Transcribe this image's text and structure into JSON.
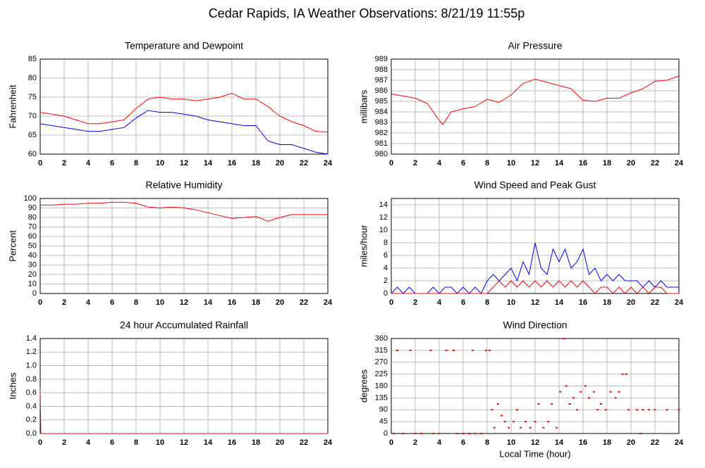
{
  "title": "Cedar Rapids, IA Weather Observations: 8/21/19 11:55p",
  "chart_data": [
    {
      "type": "line",
      "title": "Temperature and Dewpoint",
      "ylabel": "Fahrenheit",
      "x": [
        0,
        1,
        2,
        3,
        4,
        5,
        6,
        7,
        8,
        9,
        10,
        11,
        12,
        13,
        14,
        15,
        16,
        17,
        18,
        19,
        20,
        21,
        22,
        23,
        24
      ],
      "series": [
        {
          "color": "#ff0000",
          "values": [
            71,
            70.5,
            70,
            69,
            68,
            68,
            68.5,
            69,
            72,
            74.5,
            75,
            74.5,
            74.5,
            74,
            74.5,
            75,
            76,
            74.5,
            74.5,
            72.5,
            70,
            68.5,
            67.5,
            66,
            65.8
          ]
        },
        {
          "color": "#0000ff",
          "values": [
            68,
            67.5,
            67,
            66.5,
            66,
            66,
            66.5,
            67,
            69.5,
            71.5,
            71,
            71,
            70.5,
            70,
            69,
            68.5,
            68,
            67.5,
            67.5,
            63.5,
            62.5,
            62.5,
            61.5,
            60.5,
            60
          ]
        }
      ],
      "xlim": [
        0,
        24
      ],
      "xticks": [
        0,
        2,
        4,
        6,
        8,
        10,
        12,
        14,
        16,
        18,
        20,
        22,
        24
      ],
      "ylim": [
        60,
        85
      ],
      "yticks": [
        60,
        65,
        70,
        75,
        80,
        85
      ],
      "grid": true
    },
    {
      "type": "line",
      "title": "Air Pressure",
      "ylabel": "millibars",
      "x": [
        0,
        1,
        2,
        3,
        4,
        4.3,
        5,
        6,
        7,
        8,
        9,
        10,
        11,
        12,
        13,
        14,
        15,
        16,
        17,
        18,
        19,
        20,
        21,
        22,
        23,
        24
      ],
      "series": [
        {
          "color": "#ff0000",
          "values": [
            985.7,
            985.5,
            985.3,
            984.8,
            983.2,
            982.8,
            984,
            984.3,
            984.5,
            985.2,
            984.9,
            985.6,
            986.7,
            987.1,
            986.8,
            986.5,
            986.2,
            985.1,
            985,
            985.3,
            985.3,
            985.8,
            986.2,
            986.9,
            987,
            987.4
          ]
        }
      ],
      "xlim": [
        0,
        24
      ],
      "xticks": [
        0,
        2,
        4,
        6,
        8,
        10,
        12,
        14,
        16,
        18,
        20,
        22,
        24
      ],
      "ylim": [
        980,
        989
      ],
      "yticks": [
        980,
        981,
        982,
        983,
        984,
        985,
        986,
        987,
        988,
        989
      ],
      "grid": true
    },
    {
      "type": "line",
      "title": "Relative Humidity",
      "ylabel": "Percent",
      "x": [
        0,
        1,
        2,
        3,
        4,
        5,
        6,
        7,
        8,
        9,
        10,
        11,
        12,
        13,
        14,
        15,
        16,
        17,
        18,
        19,
        20,
        21,
        22,
        23,
        24
      ],
      "series": [
        {
          "color": "#ff0000",
          "values": [
            93,
            93,
            94,
            94,
            95,
            95,
            96,
            96,
            95,
            91,
            90,
            91,
            90,
            88,
            85,
            82,
            79,
            80,
            81,
            76,
            80,
            83,
            83,
            83,
            83
          ]
        }
      ],
      "xlim": [
        0,
        24
      ],
      "xticks": [
        0,
        2,
        4,
        6,
        8,
        10,
        12,
        14,
        16,
        18,
        20,
        22,
        24
      ],
      "ylim": [
        0,
        100
      ],
      "yticks": [
        0,
        10,
        20,
        30,
        40,
        50,
        60,
        70,
        80,
        90,
        100
      ],
      "grid": true
    },
    {
      "type": "line",
      "title": "Wind Speed and Peak Gust",
      "ylabel": "miles/hour",
      "x": [
        0,
        0.5,
        1,
        1.5,
        2,
        2.5,
        3,
        3.5,
        4,
        4.5,
        5,
        5.5,
        6,
        6.5,
        7,
        7.5,
        8,
        8.5,
        9,
        9.5,
        10,
        10.5,
        11,
        11.5,
        12,
        12.5,
        13,
        13.5,
        14,
        14.5,
        15,
        15.5,
        16,
        16.5,
        17,
        17.5,
        18,
        18.5,
        19,
        19.5,
        20,
        20.5,
        21,
        21.5,
        22,
        22.5,
        23,
        23.5,
        24
      ],
      "series": [
        {
          "color": "#0000ff",
          "values": [
            0,
            1,
            0,
            1,
            0,
            0,
            0,
            1,
            0,
            1,
            1,
            0,
            1,
            0,
            1,
            0,
            2,
            3,
            2,
            3,
            4,
            2,
            5,
            3,
            8,
            4,
            3,
            7,
            5,
            7,
            4,
            5,
            7,
            3,
            4,
            2,
            3,
            2,
            3,
            2,
            2,
            2,
            1,
            2,
            1,
            2,
            1,
            1,
            1
          ]
        },
        {
          "color": "#ff0000",
          "values": [
            0,
            0,
            0,
            0,
            0,
            0,
            0,
            0,
            0,
            0,
            0,
            0,
            0,
            0,
            0,
            0,
            0,
            1,
            2,
            1,
            2,
            1,
            2,
            1,
            2,
            1,
            2,
            1,
            2,
            1,
            2,
            1,
            2,
            1,
            0,
            1,
            1,
            0,
            1,
            0,
            1,
            0,
            1,
            0,
            1,
            1,
            0,
            0,
            0
          ]
        }
      ],
      "xlim": [
        0,
        24
      ],
      "xticks": [
        0,
        2,
        4,
        6,
        8,
        10,
        12,
        14,
        16,
        18,
        20,
        22,
        24
      ],
      "ylim": [
        0,
        15
      ],
      "yticks": [
        0,
        2,
        4,
        6,
        8,
        10,
        12,
        14
      ],
      "grid": true
    },
    {
      "type": "line",
      "title": "24 hour Accumulated Rainfall",
      "ylabel": "Inches",
      "x": [
        0,
        0.05,
        24
      ],
      "series": [
        {
          "color": "#ff0000",
          "values": [
            0.65,
            0,
            0
          ]
        }
      ],
      "xlim": [
        0,
        24
      ],
      "xticks": [
        0,
        2,
        4,
        6,
        8,
        10,
        12,
        14,
        16,
        18,
        20,
        22,
        24
      ],
      "ylim": [
        0,
        1.4
      ],
      "yticks": [
        {
          "value": 0,
          "label": "0.0"
        },
        0.2,
        0.4,
        0.6,
        0.8,
        {
          "value": 1,
          "label": "1.0"
        },
        1.2,
        1.4
      ],
      "grid": true
    },
    {
      "type": "scatter",
      "title": "Wind Direction",
      "ylabel": "degrees",
      "xlabel": "Local Time (hour)",
      "x": [
        0.2,
        0.5,
        1,
        1.6,
        2,
        2.5,
        3.3,
        3.5,
        4,
        4.6,
        5.2,
        5.5,
        6,
        6.5,
        6.8,
        7,
        7.5,
        7.9,
        8.2,
        8.4,
        8.6,
        8.9,
        9.2,
        9.5,
        9.8,
        10.2,
        10.5,
        10.8,
        11.2,
        11.6,
        12,
        12.3,
        12.7,
        13.1,
        13.4,
        13.8,
        14.1,
        14.4,
        14.6,
        14.9,
        15.2,
        15.5,
        15.8,
        16.2,
        16.5,
        16.9,
        17.2,
        17.5,
        17.9,
        18.3,
        18.7,
        19,
        19.3,
        19.6,
        19.8,
        20.5,
        20.8,
        21,
        21.5,
        22,
        23,
        24
      ],
      "series": [
        {
          "color": "#ff0000",
          "values": [
            0,
            315,
            0,
            315,
            0,
            0,
            315,
            0,
            0,
            315,
            315,
            0,
            0,
            0,
            315,
            0,
            0,
            315,
            315,
            90,
            22,
            112,
            68,
            45,
            22,
            45,
            90,
            22,
            45,
            22,
            45,
            112,
            22,
            45,
            112,
            22,
            158,
            360,
            180,
            112,
            135,
            90,
            158,
            180,
            135,
            158,
            90,
            112,
            90,
            158,
            135,
            158,
            225,
            225,
            90,
            90,
            0,
            90,
            90,
            90,
            90,
            90
          ]
        }
      ],
      "xlim": [
        0,
        24
      ],
      "xticks": [
        0,
        2,
        4,
        6,
        8,
        10,
        12,
        14,
        16,
        18,
        20,
        22,
        24
      ],
      "ylim": [
        0,
        360
      ],
      "yticks": [
        0,
        45,
        90,
        135,
        180,
        225,
        270,
        315,
        360
      ],
      "grid": true
    }
  ]
}
